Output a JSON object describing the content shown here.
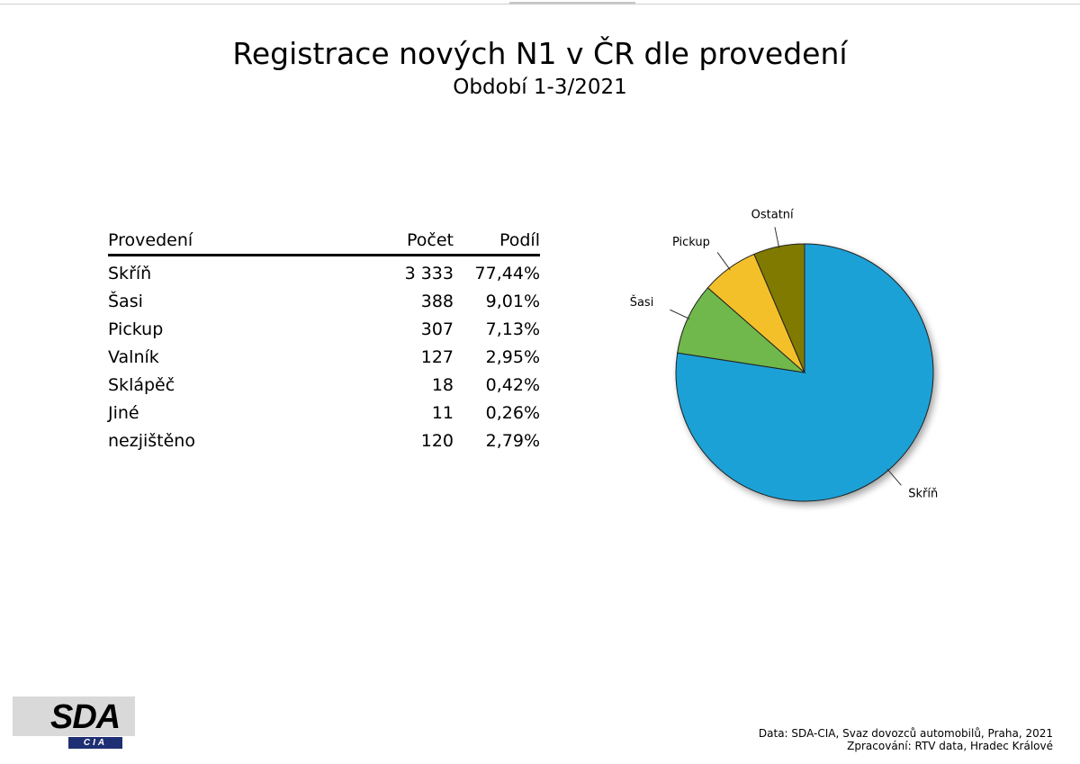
{
  "title": "Registrace nových N1 v ČR dle provedení",
  "subtitle": "Období 1-3/2021",
  "table": {
    "headers": [
      "Provedení",
      "Počet",
      "Podíl"
    ],
    "rows": [
      [
        "Skříň",
        "3 333",
        "77,44%"
      ],
      [
        "Šasi",
        "388",
        "9,01%"
      ],
      [
        "Pickup",
        "307",
        "7,13%"
      ],
      [
        "Valník",
        "127",
        "2,95%"
      ],
      [
        "Sklápěč",
        "18",
        "0,42%"
      ],
      [
        "Jiné",
        "11",
        "0,26%"
      ],
      [
        "nezjištěno",
        "120",
        "2,79%"
      ]
    ]
  },
  "chart_data": {
    "type": "pie",
    "categories": [
      "Skříň",
      "Šasi",
      "Pickup",
      "Ostatní"
    ],
    "values": [
      77.44,
      9.01,
      7.13,
      6.42
    ],
    "colors": [
      "#1ba1d6",
      "#6fb84b",
      "#f4c02c",
      "#807a00"
    ],
    "start": "12 o'clock, clockwise"
  },
  "logo": {
    "text": "SDA",
    "sub": "CIA"
  },
  "source": {
    "line1": "Data: SDA-CIA, Svaz dovozců automobilů, Praha, 2021",
    "line2": "Zpracování: RTV data, Hradec Králové"
  }
}
